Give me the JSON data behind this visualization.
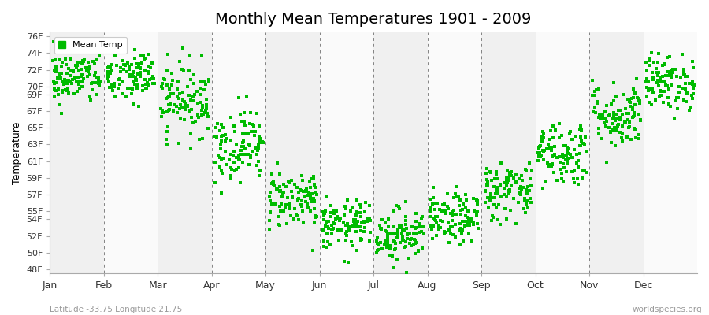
{
  "title": "Monthly Mean Temperatures 1901 - 2009",
  "ylabel": "Temperature",
  "subtitle_left": "Latitude -33.75 Longitude 21.75",
  "subtitle_right": "worldspecies.org",
  "legend_label": "Mean Temp",
  "months": [
    "Jan",
    "Feb",
    "Mar",
    "Apr",
    "May",
    "Jun",
    "Jul",
    "Aug",
    "Sep",
    "Oct",
    "Nov",
    "Dec"
  ],
  "yticks": [
    48,
    50,
    52,
    54,
    55,
    57,
    59,
    61,
    63,
    65,
    67,
    69,
    70,
    72,
    74,
    76
  ],
  "ylim": [
    47.5,
    76.5
  ],
  "dot_color": "#00bb00",
  "band_color_light": "#f0f0f0",
  "band_color_white": "#fafafa",
  "n_years": 109,
  "monthly_means": [
    71.0,
    71.2,
    68.5,
    63.0,
    56.5,
    53.2,
    52.2,
    54.0,
    57.5,
    62.0,
    66.5,
    70.5
  ],
  "monthly_stds": [
    1.6,
    1.7,
    2.2,
    2.2,
    1.8,
    1.5,
    1.6,
    1.5,
    1.8,
    2.0,
    2.0,
    1.7
  ],
  "seed": 42,
  "title_fontsize": 14,
  "axis_label_fontsize": 9,
  "tick_fontsize": 8
}
